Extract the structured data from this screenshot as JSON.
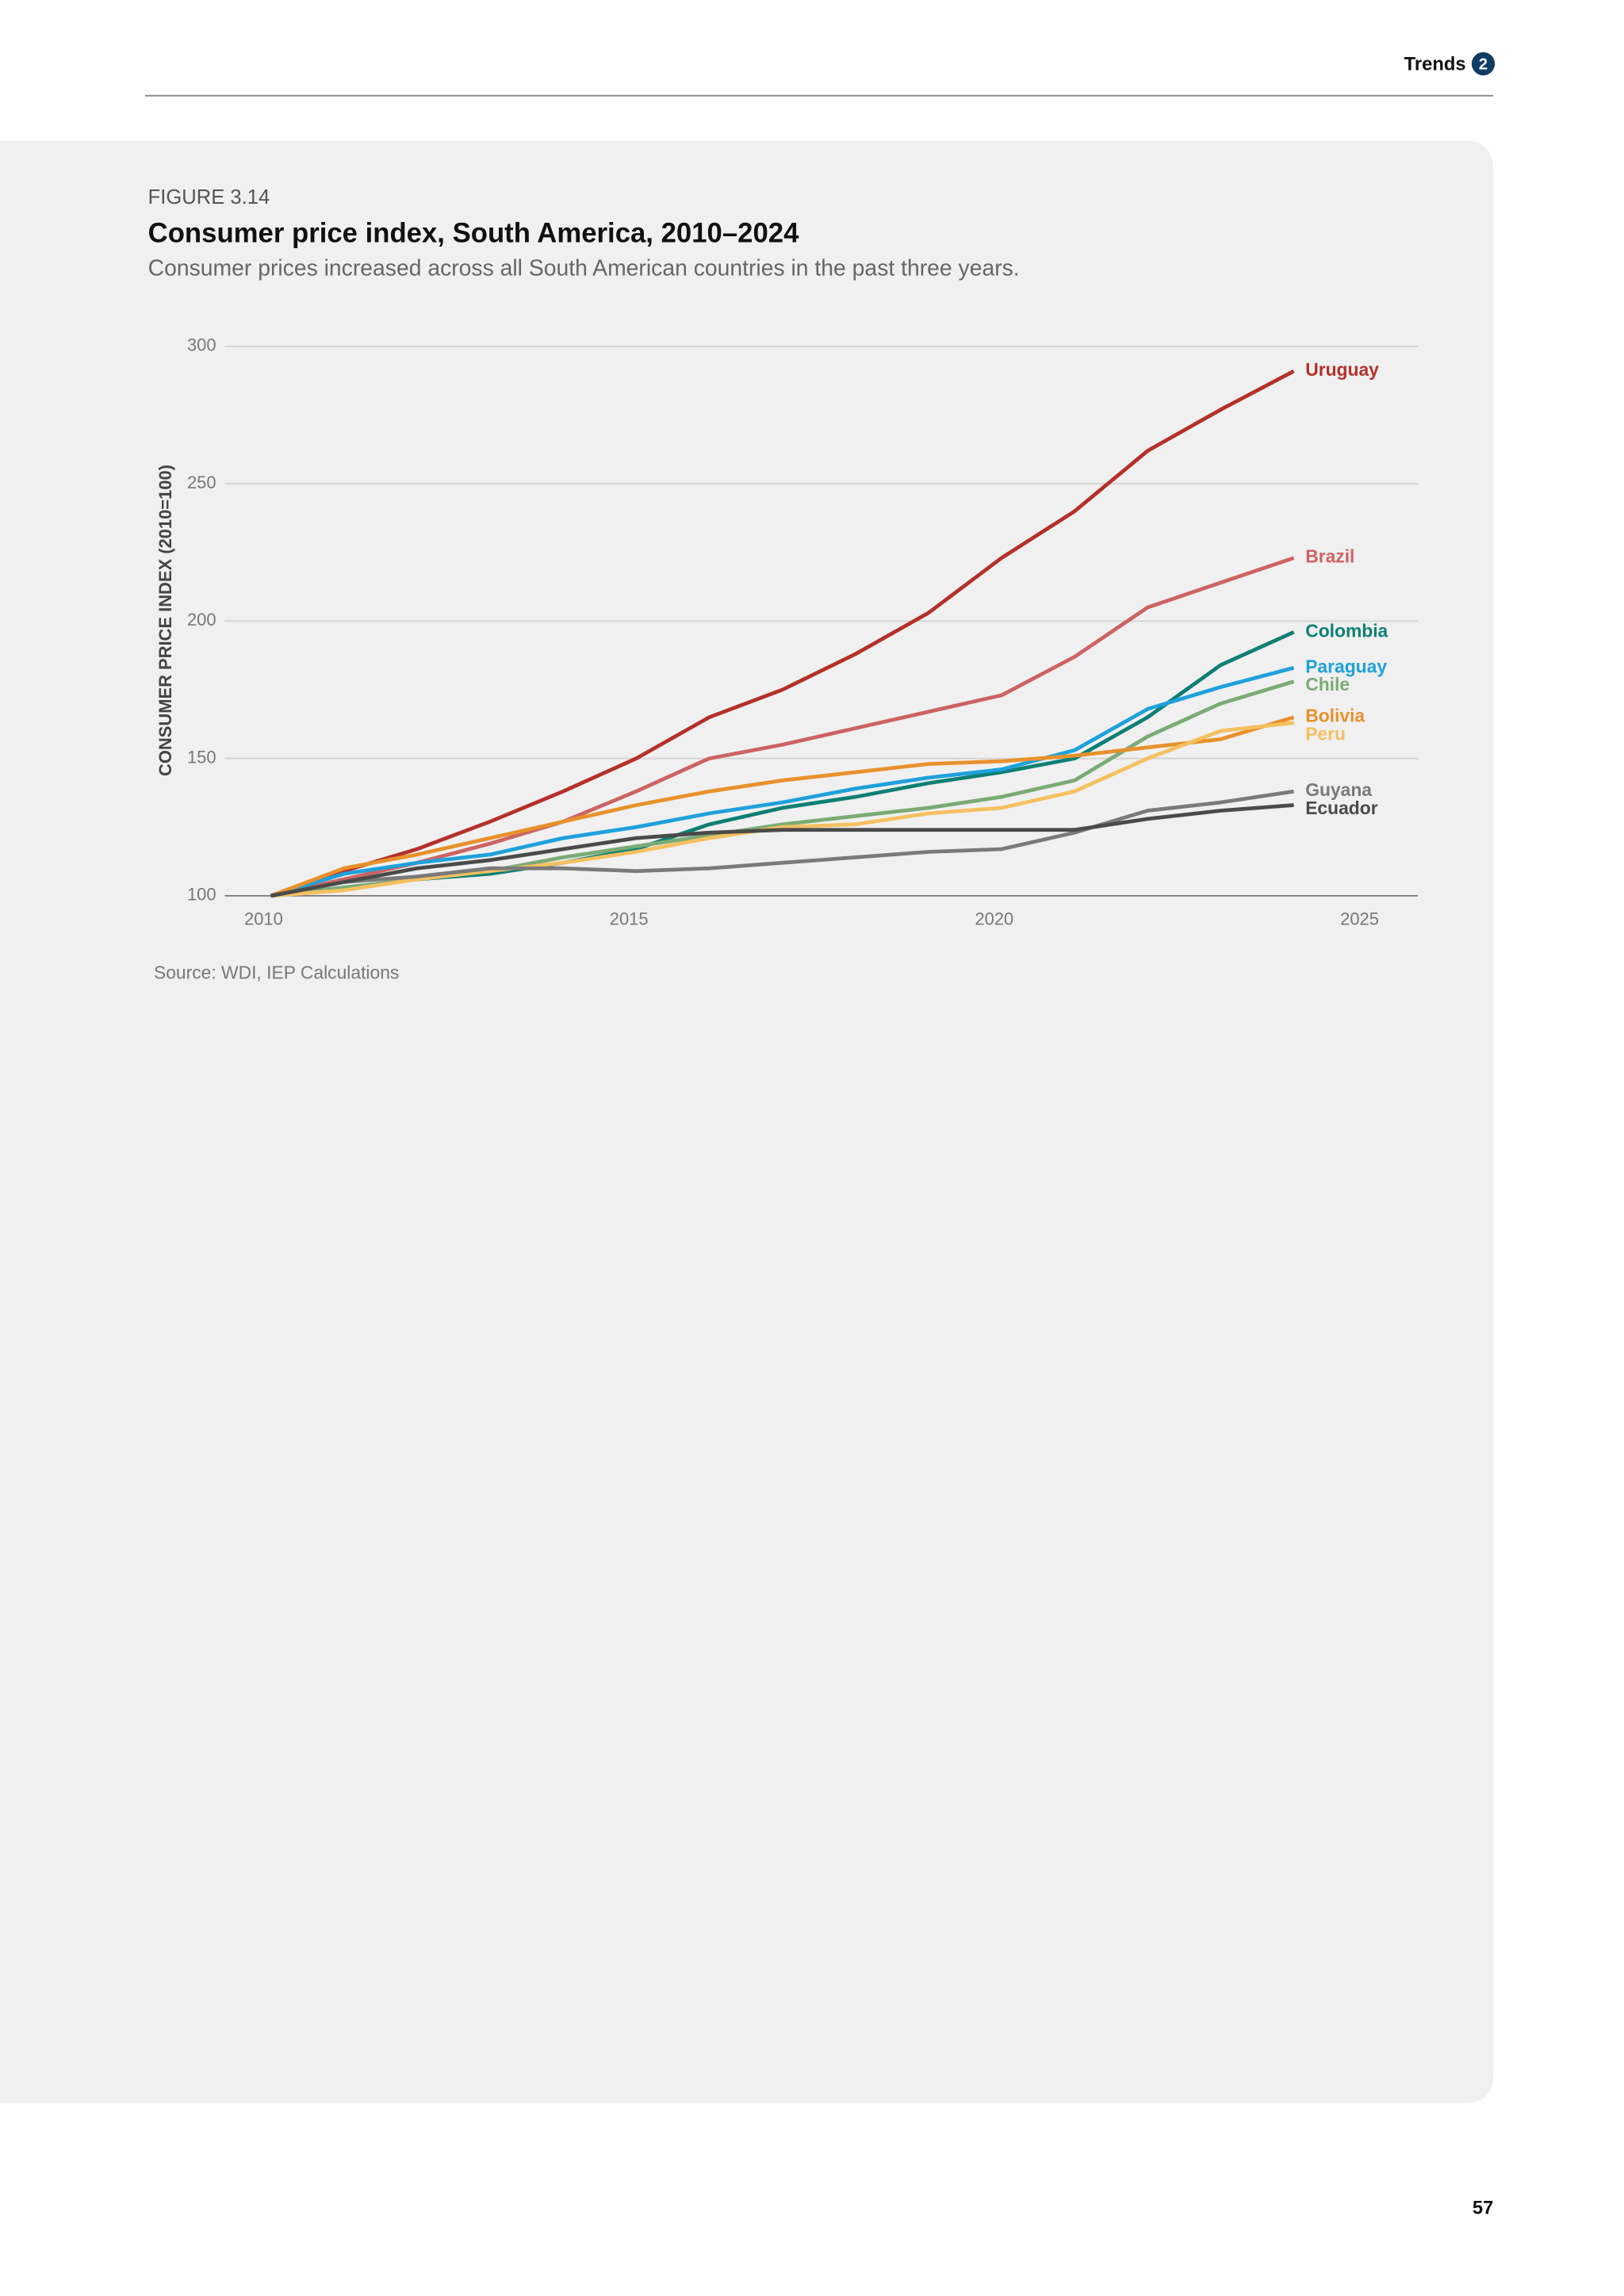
{
  "header": {
    "section": "Trends",
    "section_number": "2"
  },
  "page_number": "57",
  "chart_data": {
    "type": "line",
    "figure_label": "FIGURE 3.14",
    "title": "Consumer price index, South America, 2010–2024",
    "subtitle": "Consumer prices increased across all South American countries in the past three years.",
    "y_label": "CONSUMER PRICE INDEX (2010=100)",
    "source": "Source: WDI, IEP Calculations",
    "x": [
      2010,
      2011,
      2012,
      2013,
      2014,
      2015,
      2016,
      2017,
      2018,
      2019,
      2020,
      2021,
      2022,
      2023,
      2024
    ],
    "xlim": [
      2009.37,
      2025.7
    ],
    "xticks": [
      2010,
      2015,
      2020,
      2025
    ],
    "ylim": [
      100,
      300
    ],
    "yticks": [
      100,
      150,
      200,
      250,
      300
    ],
    "grid": true,
    "series": [
      {
        "name": "Uruguay",
        "color": "#b5302a",
        "values": [
          100,
          109,
          117,
          127,
          138,
          150,
          165,
          175,
          188,
          203,
          223,
          240,
          262,
          277,
          291
        ]
      },
      {
        "name": "Brazil",
        "color": "#cd6362",
        "values": [
          100,
          106,
          112,
          119,
          127,
          138,
          150,
          155,
          161,
          167,
          173,
          187,
          205,
          214,
          223
        ]
      },
      {
        "name": "Colombia",
        "color": "#0e7f74",
        "values": [
          100,
          103,
          106,
          108,
          112,
          117,
          126,
          132,
          136,
          141,
          145,
          150,
          165,
          184,
          196
        ]
      },
      {
        "name": "Paraguay",
        "color": "#1ea1dc",
        "values": [
          100,
          108,
          112,
          115,
          121,
          125,
          130,
          134,
          139,
          143,
          146,
          153,
          168,
          176,
          183
        ]
      },
      {
        "name": "Chile",
        "color": "#7aab74",
        "values": [
          100,
          103,
          106,
          109,
          114,
          118,
          122,
          126,
          129,
          132,
          136,
          142,
          158,
          170,
          178
        ]
      },
      {
        "name": "Bolivia",
        "color": "#e8912b",
        "values": [
          100,
          110,
          115,
          121,
          127,
          133,
          138,
          142,
          145,
          148,
          149,
          151,
          154,
          157,
          165
        ]
      },
      {
        "name": "Peru",
        "color": "#f5c060",
        "values": [
          100,
          102,
          106,
          109,
          112,
          116,
          121,
          125,
          126,
          130,
          132,
          138,
          150,
          160,
          163
        ]
      },
      {
        "name": "Guyana",
        "color": "#7a7a7a",
        "values": [
          100,
          105,
          107,
          110,
          110,
          109,
          110,
          112,
          114,
          116,
          117,
          123,
          131,
          134,
          138
        ]
      },
      {
        "name": "Ecuador",
        "color": "#4a4a4a",
        "values": [
          100,
          105,
          110,
          113,
          117,
          121,
          123,
          124,
          124,
          124,
          124,
          124,
          128,
          131,
          133
        ]
      }
    ]
  }
}
